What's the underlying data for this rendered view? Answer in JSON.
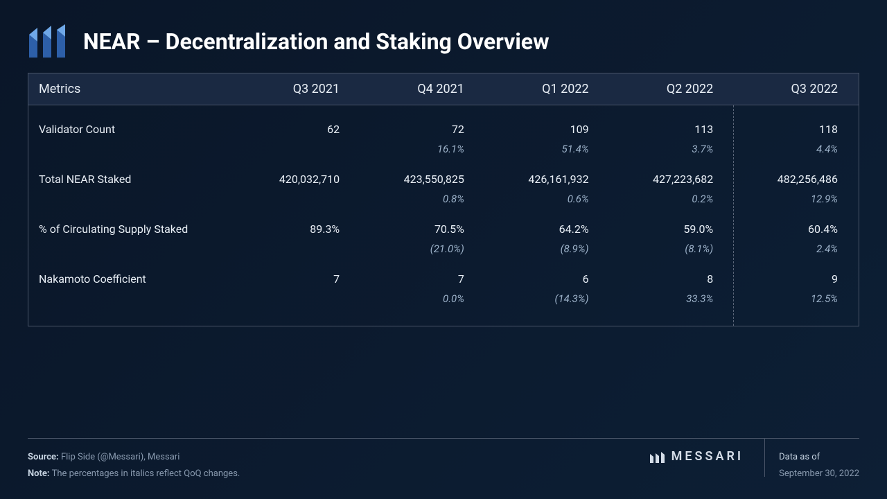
{
  "title": "NEAR – Decentralization and Staking Overview",
  "brand": "MESSARI",
  "logo_colors": {
    "light": "#6fa8e8",
    "dark": "#2d5fa8"
  },
  "background_gradient": [
    "#0a1628",
    "#0d1f35"
  ],
  "border_color": "#4a5568",
  "header_bg": "#1a2942",
  "text_color": "#e8eef5",
  "muted_text": "#8a9bb0",
  "table": {
    "columns": [
      "Metrics",
      "Q3 2021",
      "Q4 2021",
      "Q1 2022",
      "Q2 2022",
      "Q3 2022"
    ],
    "highlighted_col_index": 5,
    "rows": [
      {
        "metric": "Validator Count",
        "values": [
          "62",
          "72",
          "109",
          "113",
          "118"
        ],
        "deltas": [
          "",
          "16.1%",
          "51.4%",
          "3.7%",
          "4.4%"
        ]
      },
      {
        "metric": "Total NEAR Staked",
        "values": [
          "420,032,710",
          "423,550,825",
          "426,161,932",
          "427,223,682",
          "482,256,486"
        ],
        "deltas": [
          "",
          "0.8%",
          "0.6%",
          "0.2%",
          "12.9%"
        ]
      },
      {
        "metric": "% of Circulating Supply Staked",
        "values": [
          "89.3%",
          "70.5%",
          "64.2%",
          "59.0%",
          "60.4%"
        ],
        "deltas": [
          "",
          "(21.0%)",
          "(8.9%)",
          "(8.1%)",
          "2.4%"
        ]
      },
      {
        "metric": "Nakamoto Coefficient",
        "values": [
          "7",
          "7",
          "6",
          "8",
          "9"
        ],
        "deltas": [
          "",
          "0.0%",
          "(14.3%)",
          "33.3%",
          "12.5%"
        ]
      }
    ]
  },
  "footer": {
    "source_label": "Source:",
    "source_text": " Flip Side (@Messari), Messari",
    "note_label": "Note:",
    "note_text": " The percentages in italics reflect QoQ changes.",
    "date_label": "Data as of",
    "date_value": "September 30, 2022"
  }
}
